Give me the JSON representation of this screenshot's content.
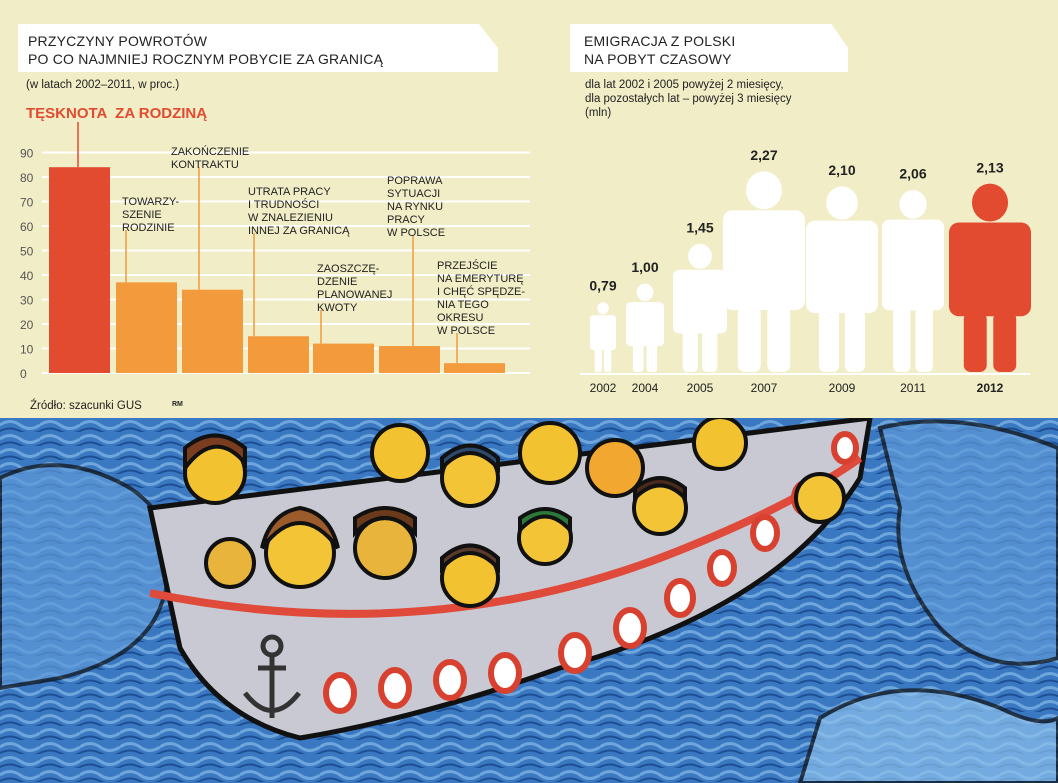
{
  "left_chart": {
    "title_line1": "PRZYCZYNY POWROTÓW",
    "title_line2": "PO CO NAJMNIEJ ROCZNYM POBYCIE ZA GRANICĄ",
    "subtitle": "(w latach 2002–2011, w proc.)",
    "highlight": "TĘSKNOTA  ZA RODZINĄ",
    "source": "Źródło: szacunki GUS",
    "credit": "RM"
  },
  "right_chart": {
    "title_line1": "EMIGRACJA Z POLSKI",
    "title_line2": "NA POBYT CZASOWY",
    "note_line1": "dla lat 2002 i 2005 powyżej 2 miesięcy,",
    "note_line2": "dla pozostałych lat – powyżej 3 miesięcy",
    "note_line3": "(mln)"
  },
  "colors": {
    "background": "#f1edc6",
    "highlight_red": "#e24b30",
    "orange": "#f39a3c",
    "gridline": "#ffffff",
    "figure_white": "#ffffff"
  },
  "chart_data": [
    {
      "type": "bar",
      "title": "PRZYCZYNY POWROTÓW PO CO NAJMNIEJ ROCZNYM POBYCIE ZA GRANICĄ",
      "subtitle": "(w latach 2002–2011, w proc.)",
      "yticks": [
        "0",
        "10",
        "20",
        "30",
        "40",
        "50",
        "60",
        "70",
        "80",
        "90"
      ],
      "ylim": [
        0,
        90
      ],
      "grid": true,
      "categories": [
        [
          "TĘSKNOTA  ZA RODZINĄ"
        ],
        [
          "TOWARZY-",
          "SZENIE",
          "RODZINIE"
        ],
        [
          "ZAKOŃCZENIE",
          "KONTRAKTU"
        ],
        [
          "UTRATA PRACY",
          "I TRUDNOŚCI",
          "W ZNALEZIENIU",
          "INNEJ ZA GRANICĄ"
        ],
        [
          "ZAOSZCZĘ-",
          "DZENIE",
          "PLANOWANEJ",
          "KWOTY"
        ],
        [
          "POPRAWA",
          "SYTUACJI",
          "NA RYNKU",
          "PRACY",
          "W POLSCE"
        ],
        [
          "PRZEJŚCIE",
          "NA EMERYTURĘ",
          "I CHĘĆ SPĘDZE-",
          "NIA TEGO",
          "OKRESU",
          "W POLSCE"
        ]
      ],
      "values": [
        84,
        37,
        34,
        15,
        12,
        11,
        4
      ]
    },
    {
      "type": "bar",
      "title": "EMIGRACJA Z POLSKI NA POBYT CZASOWY",
      "unit": "(mln)",
      "categories": [
        "2002",
        "2004",
        "2005",
        "2007",
        "2009",
        "2011",
        "2012"
      ],
      "labels": [
        "0,79",
        "1,00",
        "1,45",
        "2,27",
        "2,10",
        "2,06",
        "2,13"
      ],
      "values": [
        0.79,
        1.0,
        1.45,
        2.27,
        2.1,
        2.06,
        2.13
      ],
      "highlight_category": "2012"
    }
  ]
}
